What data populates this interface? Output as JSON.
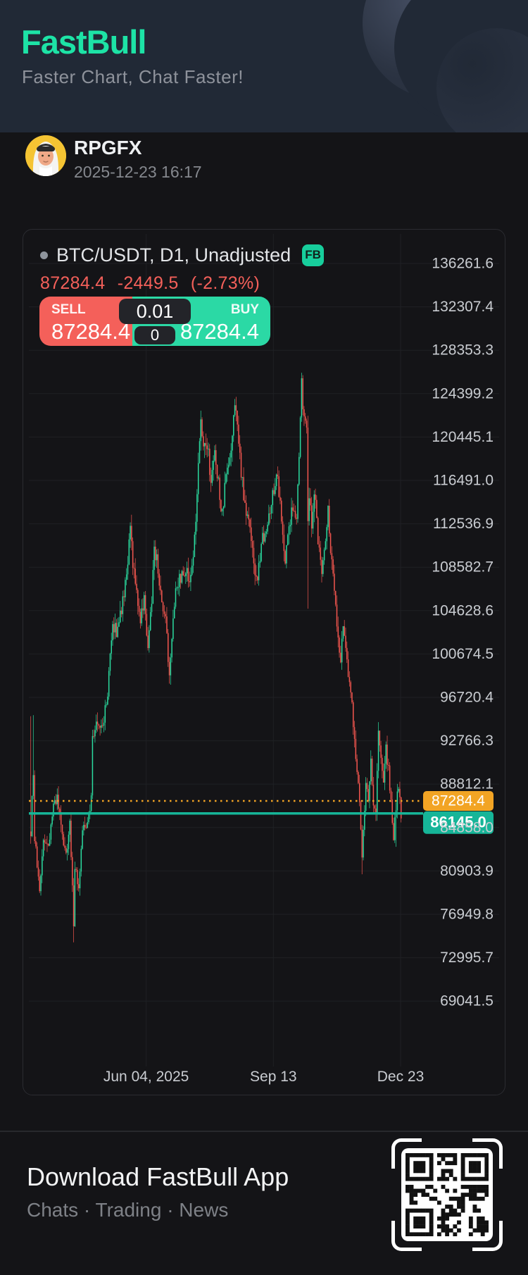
{
  "header": {
    "logo": "FastBull",
    "tagline": "Faster Chart, Chat Faster!",
    "brand_color": "#1DE3A6",
    "header_bg": "#212936"
  },
  "user": {
    "name": "RPGFX",
    "timestamp": "2025-12-23 16:17"
  },
  "chart_panel": {
    "legend": {
      "symbol_text": "BTC/USDT, D1, Unadjusted",
      "badge": "FB"
    },
    "quote": {
      "last": "87284.4",
      "change": "-2449.5",
      "change_pct": "(-2.73%)",
      "quote_color": "#F4605A"
    },
    "order_widget": {
      "sell_label": "SELL",
      "sell_price": "87284.4",
      "buy_label": "BUY",
      "buy_price": "87284.4",
      "lot_size": "0.01",
      "spread": "0",
      "sell_color": "#F4605A",
      "buy_color": "#2BD9A5"
    }
  },
  "chart_data": {
    "type": "candlestick",
    "symbol": "BTC/USDT",
    "interval": "D1",
    "title": "BTC/USDT, D1, Unadjusted",
    "start_date": "2025-03-04",
    "end_date": "2025-12-23",
    "days": 295,
    "grid": true,
    "up_color": "#2BDCA0",
    "down_color": "#F4564F",
    "axis_text_color": "#C9CCD1",
    "grid_color": "#1F2024",
    "y_ticks": [
      136261.6,
      132307.4,
      128353.3,
      124399.2,
      120445.1,
      116491.0,
      112536.9,
      108582.7,
      104628.6,
      100674.5,
      96720.4,
      92766.3,
      88812.1,
      84858.0,
      80903.9,
      76949.8,
      72995.7,
      69041.5
    ],
    "x_ticks": [
      {
        "label": "Jun 04, 2025",
        "day": 92
      },
      {
        "label": "Sep 13",
        "day": 193
      },
      {
        "label": "Dec 23",
        "day": 294
      }
    ],
    "last_price": 86145.0,
    "last_price_color": "#16B598",
    "prev_close": 87284.4,
    "prev_close_color": "#F2A424",
    "price_path": [
      [
        0,
        84500
      ],
      [
        2,
        90000
      ],
      [
        3,
        84000
      ],
      [
        7,
        78600
      ],
      [
        10,
        83900
      ],
      [
        14,
        83000
      ],
      [
        18,
        86800
      ],
      [
        21,
        87400
      ],
      [
        25,
        84200
      ],
      [
        28,
        82100
      ],
      [
        31,
        85200
      ],
      [
        34,
        76300
      ],
      [
        35,
        81100
      ],
      [
        38,
        79600
      ],
      [
        41,
        84600
      ],
      [
        45,
        85100
      ],
      [
        48,
        87300
      ],
      [
        49,
        93400
      ],
      [
        53,
        94700
      ],
      [
        57,
        94000
      ],
      [
        61,
        97100
      ],
      [
        65,
        103300
      ],
      [
        68,
        102800
      ],
      [
        71,
        104200
      ],
      [
        75,
        106800
      ],
      [
        79,
        111700
      ],
      [
        81,
        109000
      ],
      [
        84,
        106500
      ],
      [
        87,
        103800
      ],
      [
        90,
        105700
      ],
      [
        93,
        100900
      ],
      [
        96,
        105800
      ],
      [
        98,
        110300
      ],
      [
        101,
        108600
      ],
      [
        104,
        105000
      ],
      [
        107,
        103900
      ],
      [
        110,
        98600
      ],
      [
        112,
        101600
      ],
      [
        115,
        107000
      ],
      [
        119,
        107500
      ],
      [
        123,
        108200
      ],
      [
        126,
        107400
      ],
      [
        129,
        109700
      ],
      [
        131,
        113200
      ],
      [
        133,
        117500
      ],
      [
        135,
        122100
      ],
      [
        137,
        118900
      ],
      [
        140,
        119900
      ],
      [
        143,
        116500
      ],
      [
        146,
        118900
      ],
      [
        150,
        115100
      ],
      [
        152,
        113300
      ],
      [
        155,
        116900
      ],
      [
        158,
        118100
      ],
      [
        160,
        120600
      ],
      [
        162,
        123900
      ],
      [
        164,
        121300
      ],
      [
        167,
        117400
      ],
      [
        170,
        114200
      ],
      [
        173,
        112500
      ],
      [
        176,
        110100
      ],
      [
        178,
        108300
      ],
      [
        180,
        107500
      ],
      [
        183,
        110900
      ],
      [
        186,
        111900
      ],
      [
        189,
        113600
      ],
      [
        193,
        115800
      ],
      [
        196,
        116900
      ],
      [
        199,
        112800
      ],
      [
        202,
        109400
      ],
      [
        205,
        112300
      ],
      [
        208,
        114300
      ],
      [
        211,
        113500
      ],
      [
        213,
        118400
      ],
      [
        215,
        125400
      ],
      [
        217,
        121900
      ],
      [
        219,
        122000
      ],
      [
        220,
        113100
      ],
      [
        221,
        115200
      ],
      [
        223,
        112400
      ],
      [
        225,
        115800
      ],
      [
        228,
        110900
      ],
      [
        231,
        107800
      ],
      [
        234,
        111600
      ],
      [
        236,
        114100
      ],
      [
        238,
        110200
      ],
      [
        241,
        107000
      ],
      [
        244,
        102200
      ],
      [
        246,
        100500
      ],
      [
        248,
        103600
      ],
      [
        250,
        101600
      ],
      [
        252,
        98400
      ],
      [
        255,
        95900
      ],
      [
        258,
        91600
      ],
      [
        260,
        89000
      ],
      [
        262,
        84300
      ],
      [
        263,
        82600
      ],
      [
        265,
        86400
      ],
      [
        266,
        88600
      ],
      [
        268,
        87300
      ],
      [
        270,
        90800
      ],
      [
        272,
        87100
      ],
      [
        274,
        86600
      ],
      [
        276,
        93200
      ],
      [
        278,
        91000
      ],
      [
        280,
        88600
      ],
      [
        282,
        91900
      ],
      [
        284,
        90300
      ],
      [
        286,
        87200
      ],
      [
        288,
        84100
      ],
      [
        290,
        86900
      ],
      [
        292,
        88800
      ],
      [
        294,
        86145
      ]
    ],
    "wick_extremes": [
      {
        "day": 0,
        "high": 95000
      },
      {
        "day": 2,
        "high": 95100
      },
      {
        "day": 34,
        "low": 74400
      },
      {
        "day": 215,
        "high": 126300
      },
      {
        "day": 220,
        "low": 104800
      },
      {
        "day": 263,
        "low": 80600
      },
      {
        "day": 290,
        "low": 83100
      }
    ]
  },
  "footer": {
    "title": "Download FastBull App",
    "subtitle": "Chats · Trading · News"
  }
}
